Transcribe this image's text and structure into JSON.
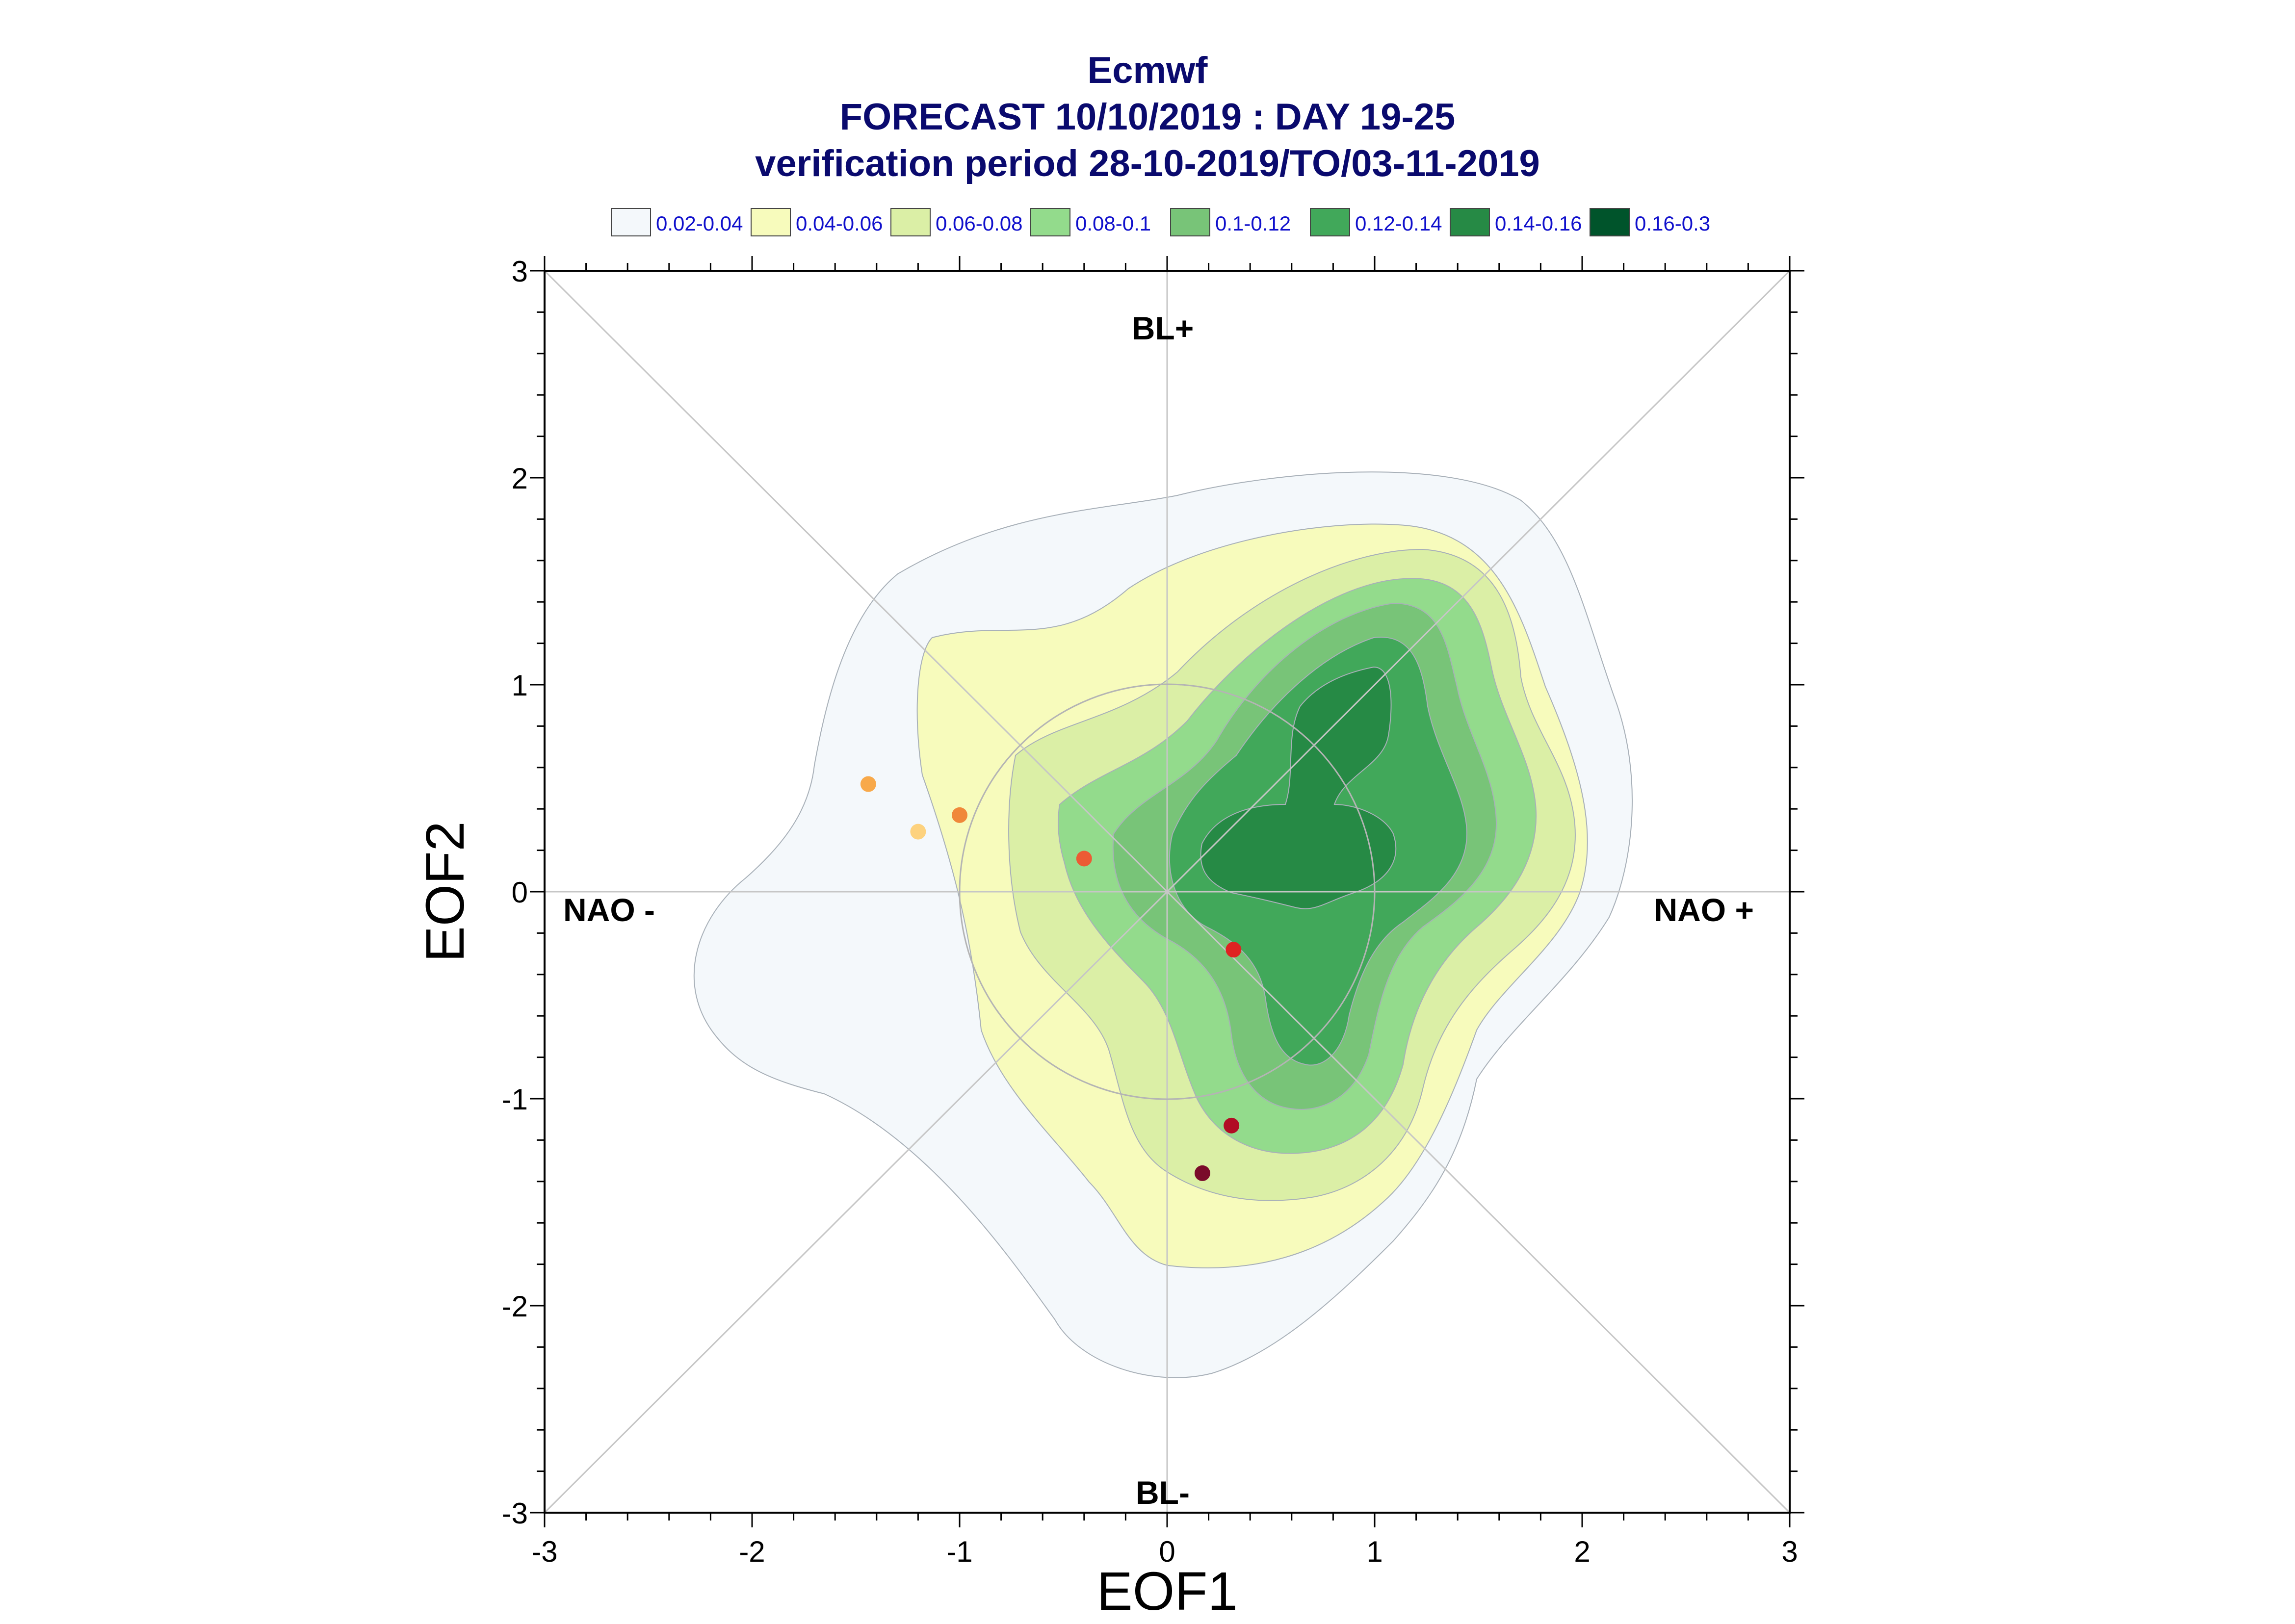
{
  "title_lines": [
    "Ecmwf",
    "FORECAST 10/10/2019 : DAY 19-25",
    "verification period 28-10-2019/TO/03-11-2019"
  ],
  "legend": [
    {
      "label": "0.02-0.04",
      "color": "#f4f8fb"
    },
    {
      "label": "0.04-0.06",
      "color": "#f7fbbc"
    },
    {
      "label": "0.06-0.08",
      "color": "#dbefa6"
    },
    {
      "label": "0.08-0.1",
      "color": "#93db8c"
    },
    {
      "label": "0.1-0.12",
      "color": "#78c478"
    },
    {
      "label": "0.12-0.14",
      "color": "#41a85a"
    },
    {
      "label": "0.14-0.16",
      "color": "#268a45"
    },
    {
      "label": "0.16-0.3",
      "color": "#00542b"
    }
  ],
  "chart_data": {
    "type": "scatter",
    "xlabel": "EOF1",
    "ylabel": "EOF2",
    "xlim": [
      -3,
      3
    ],
    "ylim": [
      -3,
      3
    ],
    "xticks": [
      "-3",
      "-2",
      "-1",
      "0",
      "1",
      "2",
      "3"
    ],
    "yticks": [
      "-3",
      "-2",
      "-1",
      "0",
      "1",
      "2",
      "3"
    ],
    "regime_labels": {
      "top": "BL+",
      "bottom": "BL-",
      "left": "NAO -",
      "right": "NAO +"
    },
    "reference_circle_radius": 1,
    "points": [
      {
        "x": -1.44,
        "y": 0.52,
        "color": "#f8a94a"
      },
      {
        "x": -1.2,
        "y": 0.29,
        "color": "#fdd27e"
      },
      {
        "x": -1.0,
        "y": 0.37,
        "color": "#f0883a"
      },
      {
        "x": -0.4,
        "y": 0.16,
        "color": "#ec5b34"
      },
      {
        "x": 0.32,
        "y": -0.28,
        "color": "#df2222"
      },
      {
        "x": 0.31,
        "y": -1.13,
        "color": "#b10d25"
      },
      {
        "x": 0.17,
        "y": -1.36,
        "color": "#7a0b2a"
      }
    ]
  }
}
